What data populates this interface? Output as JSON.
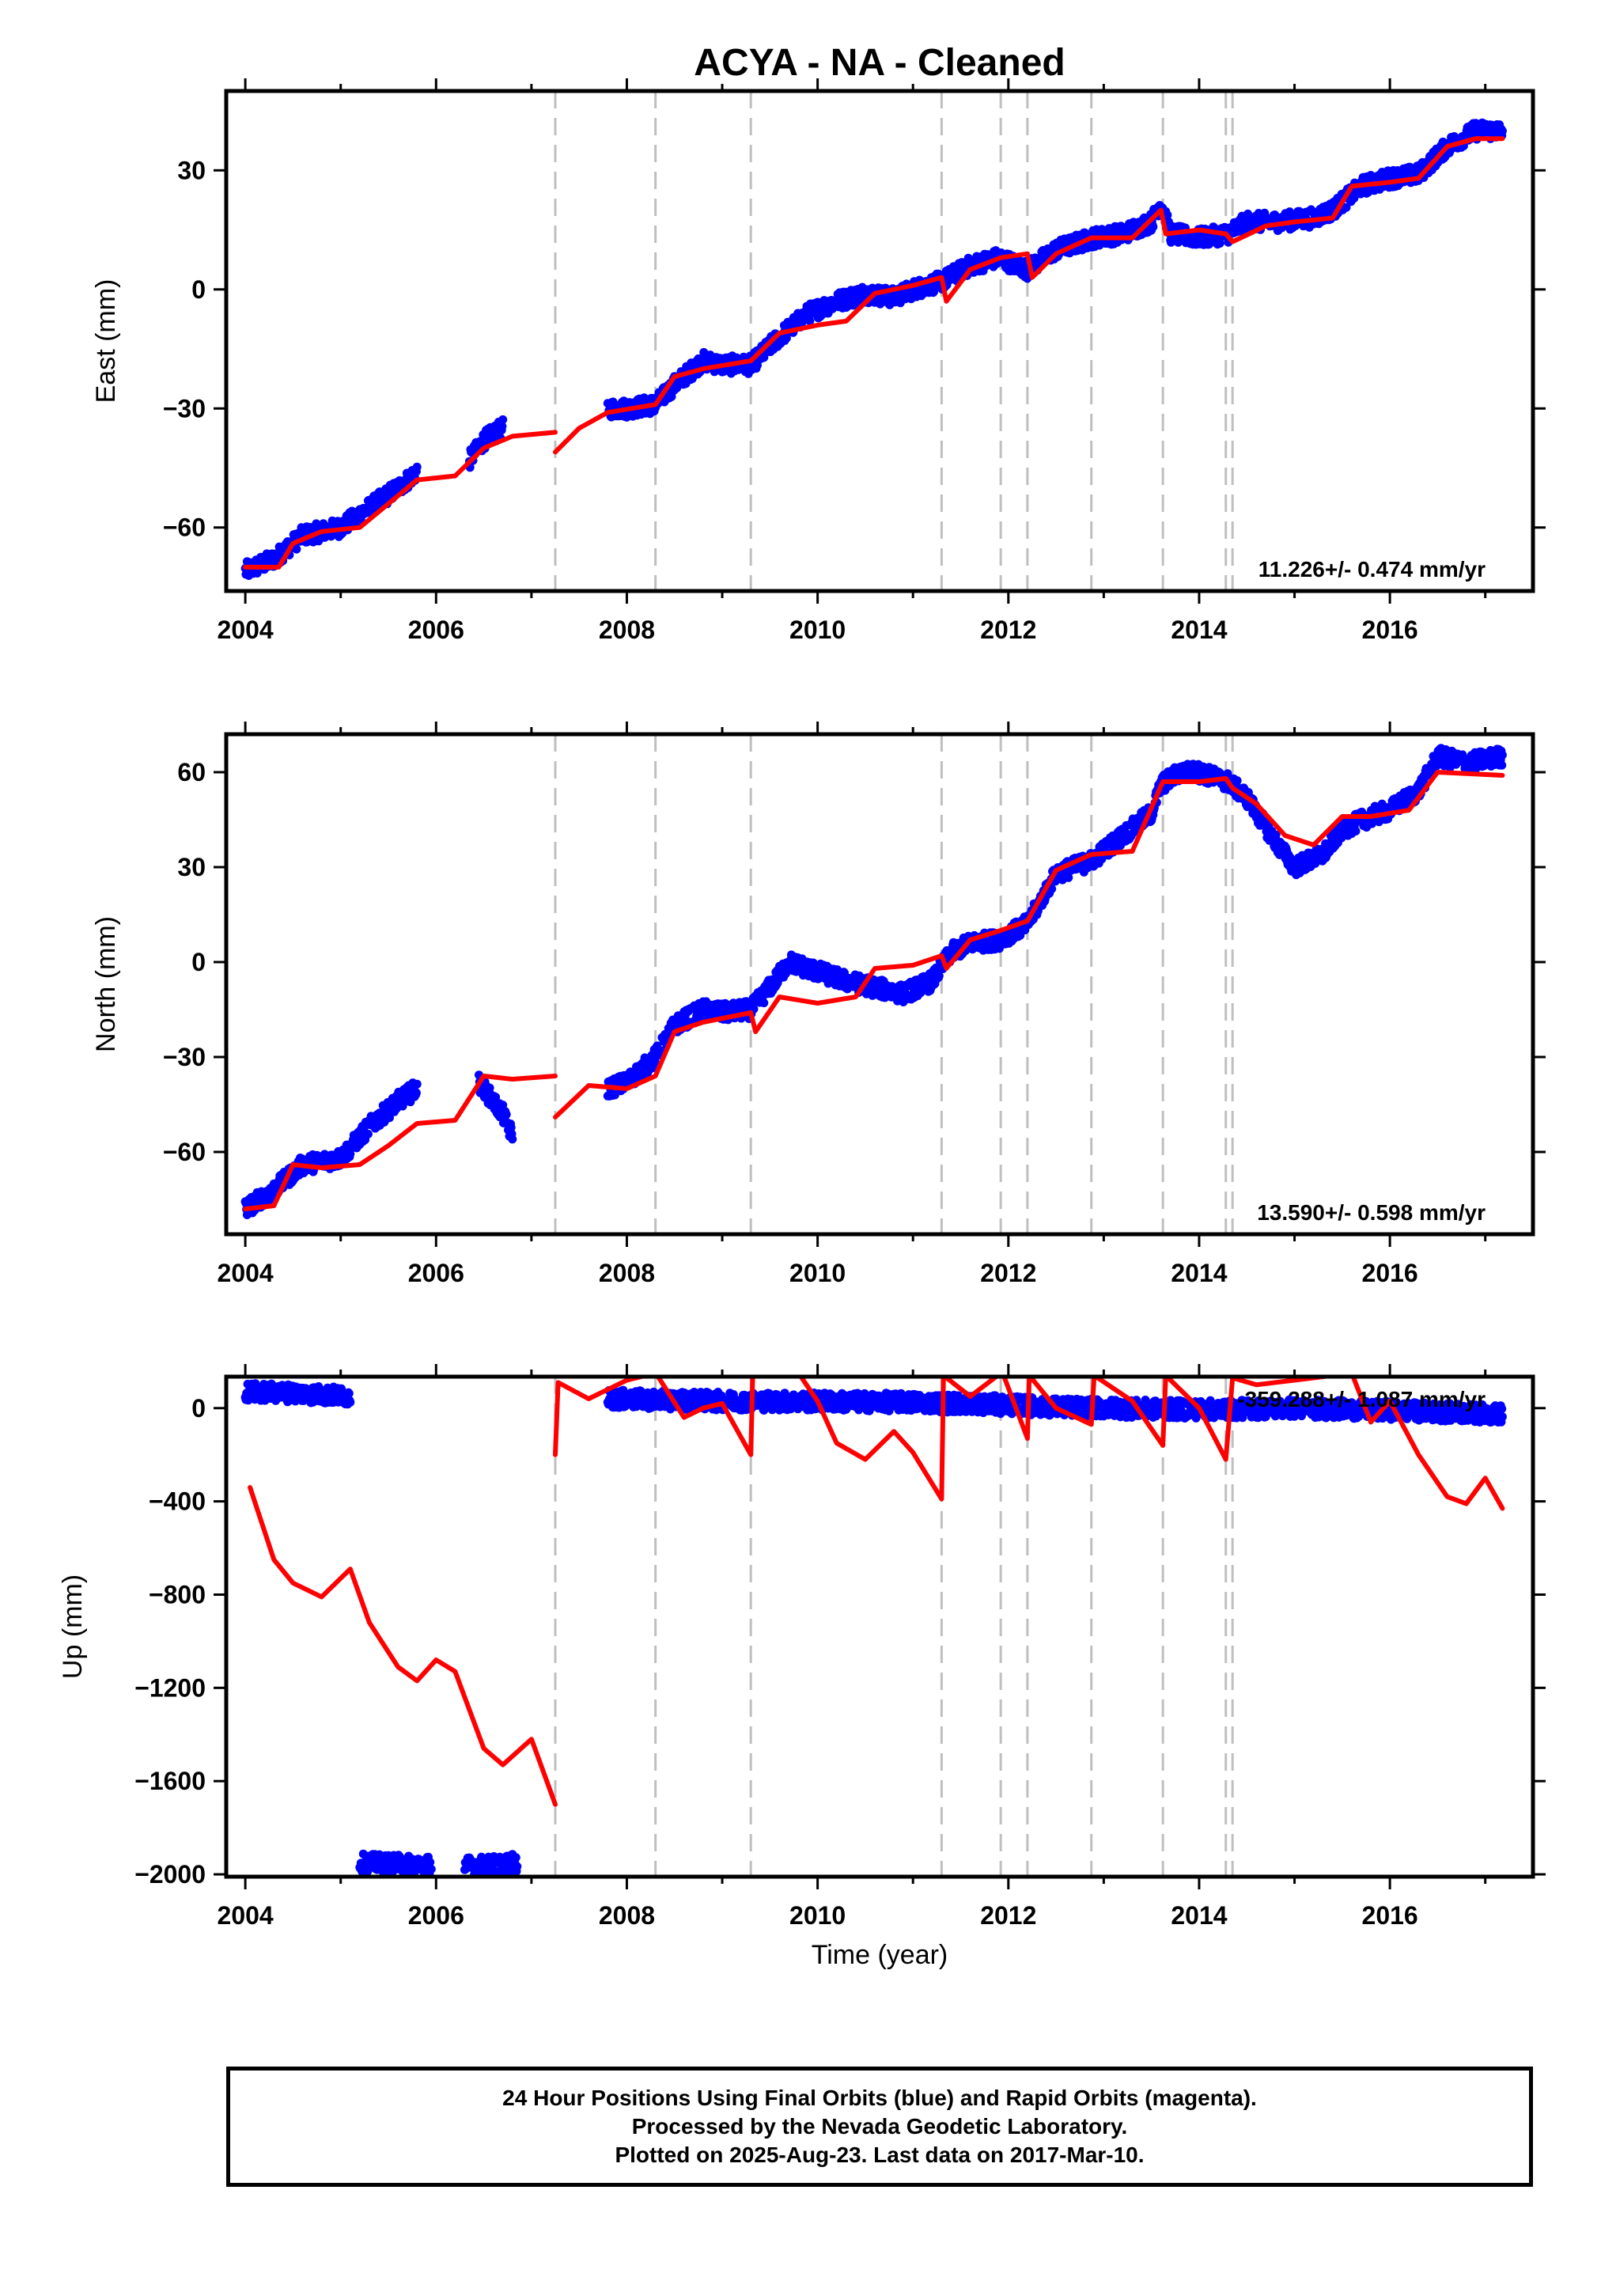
{
  "title": "ACYA  - NA - Cleaned",
  "footer": {
    "line1": "24 Hour Positions Using Final Orbits (blue) and Rapid Orbits (magenta).",
    "line2": "Processed by the Nevada Geodetic Laboratory.",
    "line3": "Plotted on 2025-Aug-23. Last data on 2017-Mar-10."
  },
  "colors": {
    "data": "#0000ff",
    "model": "#ff0000",
    "breaks": "#bfbfbf",
    "frame": "#000000"
  },
  "chart_data": [
    {
      "type": "scatter",
      "name": "east",
      "ylabel": "East (mm)",
      "xlabel": "",
      "xlim": [
        2003.8,
        2017.5
      ],
      "ylim": [
        -76,
        50
      ],
      "xticks": [
        2004,
        2006,
        2008,
        2010,
        2012,
        2014,
        2016
      ],
      "yticks": [
        -60,
        -30,
        0,
        30
      ],
      "grid": false,
      "rate": "11.226+/- 0.474 mm/yr",
      "breaks": [
        2007.25,
        2008.3,
        2009.3,
        2011.3,
        2011.92,
        2012.2,
        2012.87,
        2013.62,
        2014.28,
        2014.35
      ],
      "series": [
        {
          "role": "daily positions",
          "segments": [
            {
              "x": [
                2004.0,
                2004.3,
                2004.6,
                2005.0,
                2005.3,
                2005.6,
                2005.8
              ],
              "y": [
                -71,
                -68,
                -62,
                -60,
                -55,
                -50,
                -46
              ]
            },
            {
              "x": [
                2006.35,
                2006.5,
                2006.7
              ],
              "y": [
                -43,
                -38,
                -35
              ]
            },
            {
              "x": [
                2007.8,
                2008.0,
                2008.3,
                2008.5,
                2008.8,
                2009.0,
                2009.3,
                2009.6,
                2009.9,
                2010.2,
                2010.5,
                2010.8,
                2011.0,
                2011.3,
                2011.6,
                2011.9,
                2012.2,
                2012.5,
                2012.9,
                2013.2,
                2013.5,
                2013.6,
                2013.7,
                2014.0,
                2014.3,
                2014.5,
                2014.8,
                2015.2,
                2015.4,
                2015.7,
                2016.0,
                2016.3,
                2016.6,
                2016.9,
                2017.18
              ],
              "y": [
                -30,
                -30,
                -29,
                -24,
                -18,
                -19,
                -19,
                -12,
                -6,
                -3,
                -1,
                -2,
                0,
                2,
                6,
                8,
                5,
                10,
                13,
                14,
                17,
                22,
                14,
                13,
                14,
                17,
                17,
                18,
                20,
                26,
                28,
                29,
                36,
                40,
                40
              ]
            }
          ]
        },
        {
          "role": "model",
          "segments": [
            {
              "x": [
                2004.0,
                2004.35,
                2004.5,
                2004.8,
                2005.2,
                2005.5,
                2005.8,
                2006.2,
                2006.5,
                2006.8,
                2007.25
              ],
              "y": [
                -70,
                -70,
                -64,
                -61,
                -60,
                -54,
                -48,
                -47,
                -40,
                -37,
                -36
              ]
            },
            {
              "x": [
                2007.25,
                2007.5,
                2007.8,
                2008.3,
                2008.5,
                2008.8,
                2009.3,
                2009.6,
                2010.0,
                2010.3,
                2010.6,
                2011.0,
                2011.3,
                2011.35,
                2011.6,
                2011.92,
                2012.2,
                2012.25,
                2012.5,
                2012.87,
                2013.3,
                2013.6,
                2013.65,
                2014.0,
                2014.28,
                2014.35,
                2014.7,
                2015.0,
                2015.4,
                2015.6,
                2016.0,
                2016.3,
                2016.6,
                2016.9,
                2017.18
              ],
              "y": [
                -41,
                -35,
                -31,
                -29,
                -22,
                -20,
                -18,
                -11,
                -9,
                -8,
                -1,
                1,
                3,
                -3,
                5,
                8,
                9,
                3,
                9,
                13,
                13,
                20,
                14,
                15,
                14,
                12,
                16,
                17,
                18,
                26,
                27,
                28,
                36,
                38,
                38
              ]
            }
          ]
        }
      ]
    },
    {
      "type": "scatter",
      "name": "north",
      "ylabel": "North (mm)",
      "xlabel": "",
      "xlim": [
        2003.8,
        2017.5
      ],
      "ylim": [
        -86,
        72
      ],
      "xticks": [
        2004,
        2006,
        2008,
        2010,
        2012,
        2014,
        2016
      ],
      "yticks": [
        -60,
        -30,
        0,
        30,
        60
      ],
      "grid": false,
      "rate": "13.590+/- 0.598 mm/yr",
      "breaks": [
        2007.25,
        2008.3,
        2009.3,
        2011.3,
        2011.92,
        2012.2,
        2012.87,
        2013.62,
        2014.28,
        2014.35
      ],
      "series": [
        {
          "role": "daily positions",
          "segments": [
            {
              "x": [
                2004.0,
                2004.3,
                2004.6,
                2005.0,
                2005.3,
                2005.6,
                2005.8
              ],
              "y": [
                -78,
                -72,
                -64,
                -62,
                -52,
                -44,
                -40
              ]
            },
            {
              "x": [
                2006.45,
                2006.55,
                2006.7,
                2006.8
              ],
              "y": [
                -38,
                -42,
                -48,
                -55
              ]
            },
            {
              "x": [
                2007.8,
                2008.0,
                2008.3,
                2008.5,
                2008.8,
                2009.0,
                2009.3,
                2009.5,
                2009.7,
                2010.0,
                2010.3,
                2010.6,
                2010.9,
                2011.2,
                2011.4,
                2011.6,
                2011.9,
                2012.2,
                2012.5,
                2012.87,
                2013.2,
                2013.5,
                2013.6,
                2013.8,
                2014.0,
                2014.3,
                2014.5,
                2014.8,
                2015.0,
                2015.3,
                2015.5,
                2015.8,
                2016.0,
                2016.3,
                2016.5,
                2016.8,
                2017.18
              ],
              "y": [
                -40,
                -38,
                -30,
                -20,
                -15,
                -16,
                -15,
                -8,
                0,
                -3,
                -6,
                -8,
                -10,
                -6,
                3,
                6,
                7,
                12,
                28,
                32,
                40,
                47,
                56,
                60,
                60,
                57,
                52,
                38,
                30,
                34,
                42,
                46,
                48,
                54,
                65,
                63,
                65
              ]
            }
          ]
        },
        {
          "role": "model",
          "segments": [
            {
              "x": [
                2004.0,
                2004.3,
                2004.5,
                2004.8,
                2005.2,
                2005.5,
                2005.8,
                2006.2,
                2006.5,
                2006.8,
                2007.25
              ],
              "y": [
                -78,
                -77,
                -64,
                -65,
                -64,
                -58,
                -51,
                -50,
                -36,
                -37,
                -36
              ]
            },
            {
              "x": [
                2007.25,
                2007.6,
                2008.0,
                2008.3,
                2008.5,
                2008.8,
                2009.3,
                2009.35,
                2009.6,
                2010.0,
                2010.4,
                2010.6,
                2011.0,
                2011.3,
                2011.35,
                2011.6,
                2011.92,
                2012.2,
                2012.5,
                2012.87,
                2013.3,
                2013.62,
                2014.0,
                2014.28,
                2014.35,
                2014.6,
                2014.9,
                2015.2,
                2015.5,
                2015.8,
                2016.2,
                2016.5,
                2017.18
              ],
              "y": [
                -49,
                -39,
                -40,
                -36,
                -22,
                -19,
                -16,
                -22,
                -11,
                -13,
                -11,
                -2,
                -1,
                2,
                -2,
                7,
                10,
                13,
                29,
                34,
                35,
                57,
                57,
                58,
                55,
                50,
                40,
                37,
                46,
                46,
                48,
                60,
                59
              ]
            }
          ]
        }
      ]
    },
    {
      "type": "scatter",
      "name": "up",
      "ylabel": "Up (mm)",
      "xlabel": "Time (year)",
      "xlim": [
        2003.8,
        2017.5
      ],
      "ylim": [
        -2010,
        135
      ],
      "xticks": [
        2004,
        2006,
        2008,
        2010,
        2012,
        2014,
        2016
      ],
      "yticks": [
        -2000,
        -1600,
        -1200,
        -800,
        -400,
        0
      ],
      "grid": false,
      "rate": "-359.288+/- 1.087 mm/yr",
      "breaks": [
        2007.25,
        2008.3,
        2009.3,
        2011.3,
        2011.92,
        2012.2,
        2012.87,
        2013.62,
        2014.28,
        2014.35
      ],
      "series": [
        {
          "role": "daily positions",
          "segments": [
            {
              "x": [
                2004.0,
                2004.5,
                2005.1
              ],
              "y": [
                70,
                65,
                50
              ]
            },
            {
              "x": [
                2005.2,
                2005.6,
                2005.95
              ],
              "y": [
                -1950,
                -1955,
                -1960
              ]
            },
            {
              "x": [
                2006.3,
                2006.6,
                2006.85
              ],
              "y": [
                -1965,
                -1960,
                -1950
              ]
            },
            {
              "x": [
                2007.8,
                2008.3,
                2009.0,
                2010.0,
                2011.0,
                2011.9,
                2012.5,
                2013.0,
                2013.62,
                2014.3,
                2015.0,
                2016.0,
                2017.18
              ],
              "y": [
                40,
                35,
                30,
                28,
                25,
                15,
                5,
                0,
                -5,
                -5,
                0,
                -10,
                -25
              ]
            }
          ]
        },
        {
          "role": "model",
          "segments": [
            {
              "x": [
                2004.05,
                2004.3,
                2004.5,
                2004.8,
                2005.0,
                2005.1,
                2005.3,
                2005.6,
                2005.8,
                2006.0,
                2006.2,
                2006.5,
                2006.7,
                2007.0,
                2007.25
              ],
              "y": [
                -340,
                -650,
                -750,
                -810,
                -730,
                -690,
                -920,
                -1110,
                -1170,
                -1080,
                -1130,
                -1460,
                -1530,
                -1420,
                -1700
              ]
            },
            {
              "x": [
                2007.25,
                2007.28,
                2007.6,
                2008.0,
                2008.3,
                2008.32,
                2008.6,
                2008.8,
                2009.0,
                2009.3,
                2009.32,
                2009.8,
                2010.0,
                2010.2,
                2010.5,
                2010.8,
                2011.0,
                2011.3,
                2011.32,
                2011.6,
                2011.92,
                2011.95,
                2012.2,
                2012.22,
                2012.5,
                2012.87,
                2012.9,
                2013.3,
                2013.62,
                2013.65,
                2014.0,
                2014.28,
                2014.35,
                2014.6,
                2015.2,
                2015.6,
                2015.8,
                2016.0,
                2016.3,
                2016.6,
                2016.8,
                2017.0,
                2017.18
              ],
              "y": [
                -200,
                110,
                40,
                120,
                150,
                140,
                -40,
                0,
                20,
                -200,
                140,
                150,
                30,
                -150,
                -220,
                -100,
                -190,
                -390,
                140,
                50,
                150,
                140,
                -130,
                140,
                0,
                -70,
                140,
                30,
                -160,
                140,
                0,
                -220,
                130,
                100,
                130,
                150,
                -60,
                30,
                -200,
                -380,
                -410,
                -300,
                -430
              ]
            }
          ]
        }
      ]
    }
  ]
}
